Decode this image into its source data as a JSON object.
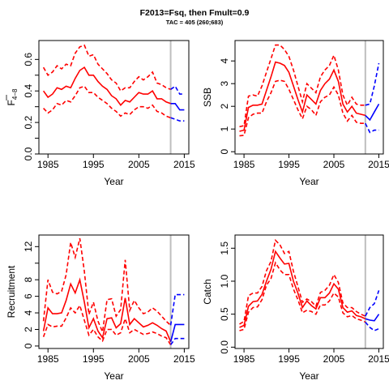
{
  "header": {
    "title": "F2013=Fsq, then Fmult=0.9",
    "subtitle": "TAC = 405 (260;683)"
  },
  "colors": {
    "historic": "#ff0000",
    "projection": "#0000ff",
    "divider": "#bebebe"
  },
  "chart_data": [
    {
      "type": "line",
      "ylabel": "F4-8",
      "xlabel": "Year",
      "xlim": [
        1983,
        2016
      ],
      "ylim": [
        0,
        0.72
      ],
      "xticks": [
        "1985",
        "1995",
        "2005",
        "2015"
      ],
      "yticks": [
        {
          "v": 0.0,
          "label": "0.0"
        },
        {
          "v": 0.1,
          "label": ""
        },
        {
          "v": 0.2,
          "label": "0.2"
        },
        {
          "v": 0.3,
          "label": ""
        },
        {
          "v": 0.4,
          "label": "0.4"
        },
        {
          "v": 0.5,
          "label": ""
        },
        {
          "v": 0.6,
          "label": "0.6"
        }
      ],
      "x": [
        1984,
        1985,
        1986,
        1987,
        1988,
        1989,
        1990,
        1991,
        1992,
        1993,
        1994,
        1995,
        1996,
        1997,
        1998,
        1999,
        2000,
        2001,
        2002,
        2003,
        2004,
        2005,
        2006,
        2007,
        2008,
        2009,
        2010,
        2011,
        2012
      ],
      "series": [
        {
          "style": "solid",
          "values": [
            0.4,
            0.36,
            0.38,
            0.42,
            0.41,
            0.43,
            0.42,
            0.48,
            0.53,
            0.55,
            0.5,
            0.5,
            0.46,
            0.43,
            0.41,
            0.37,
            0.35,
            0.31,
            0.34,
            0.33,
            0.36,
            0.39,
            0.38,
            0.38,
            0.4,
            0.35,
            0.35,
            0.33,
            0.32
          ]
        },
        {
          "style": "dashed",
          "values": [
            0.55,
            0.5,
            0.52,
            0.56,
            0.54,
            0.57,
            0.56,
            0.64,
            0.68,
            0.69,
            0.62,
            0.63,
            0.57,
            0.54,
            0.51,
            0.47,
            0.45,
            0.4,
            0.42,
            0.42,
            0.46,
            0.49,
            0.47,
            0.49,
            0.52,
            0.45,
            0.44,
            0.42,
            0.41
          ]
        },
        {
          "style": "dashed",
          "values": [
            0.29,
            0.26,
            0.28,
            0.32,
            0.31,
            0.34,
            0.33,
            0.37,
            0.42,
            0.43,
            0.39,
            0.39,
            0.36,
            0.34,
            0.32,
            0.29,
            0.27,
            0.24,
            0.26,
            0.25,
            0.28,
            0.3,
            0.3,
            0.29,
            0.31,
            0.27,
            0.26,
            0.24,
            0.23
          ]
        }
      ],
      "projection": {
        "x": [
          2012,
          2013,
          2014,
          2015
        ],
        "series": [
          {
            "style": "solid",
            "values": [
              0.32,
              0.32,
              0.28,
              0.28
            ]
          },
          {
            "style": "dashed",
            "values": [
              0.41,
              0.43,
              0.38,
              0.38
            ]
          },
          {
            "style": "dashed",
            "values": [
              0.23,
              0.22,
              0.21,
              0.21
            ]
          }
        ]
      },
      "divider_year": 2012
    },
    {
      "type": "line",
      "ylabel": "SSB",
      "xlabel": "Year",
      "xlim": [
        1983,
        2016
      ],
      "ylim": [
        -0.1,
        4.9
      ],
      "xticks": [
        "1985",
        "1995",
        "2005",
        "2015"
      ],
      "yticks": [
        {
          "v": 0,
          "label": "0"
        },
        {
          "v": 1,
          "label": "1"
        },
        {
          "v": 2,
          "label": "2"
        },
        {
          "v": 3,
          "label": "3"
        },
        {
          "v": 4,
          "label": "4"
        }
      ],
      "x": [
        1984,
        1985,
        1986,
        1987,
        1988,
        1989,
        1990,
        1991,
        1992,
        1993,
        1994,
        1995,
        1996,
        1997,
        1998,
        1999,
        2000,
        2001,
        2002,
        2003,
        2004,
        2005,
        2006,
        2007,
        2008,
        2009,
        2010,
        2011,
        2012
      ],
      "series": [
        {
          "style": "solid",
          "values": [
            0.9,
            0.95,
            1.95,
            2.05,
            2.05,
            2.1,
            2.7,
            3.3,
            3.95,
            3.9,
            3.8,
            3.5,
            2.9,
            2.3,
            1.75,
            2.5,
            2.3,
            2.1,
            2.7,
            3.0,
            3.2,
            3.6,
            3.1,
            2.1,
            1.75,
            2.0,
            1.7,
            1.65,
            1.6
          ]
        },
        {
          "style": "dashed",
          "values": [
            1.1,
            1.15,
            2.45,
            2.5,
            2.45,
            2.9,
            3.5,
            4.1,
            4.7,
            4.7,
            4.5,
            4.2,
            3.6,
            2.9,
            2.2,
            3.0,
            2.8,
            2.6,
            3.3,
            3.6,
            3.8,
            4.25,
            3.6,
            2.5,
            2.05,
            2.4,
            2.1,
            2.05,
            2.05
          ]
        },
        {
          "style": "dashed",
          "values": [
            0.7,
            0.72,
            1.5,
            1.65,
            1.7,
            1.7,
            2.2,
            2.6,
            3.1,
            3.15,
            3.1,
            2.75,
            2.3,
            1.85,
            1.45,
            2.0,
            1.85,
            1.6,
            2.2,
            2.4,
            2.5,
            2.85,
            2.5,
            1.7,
            1.35,
            1.6,
            1.3,
            1.25,
            1.25
          ]
        }
      ],
      "projection": {
        "x": [
          2012,
          2013,
          2014,
          2015
        ],
        "series": [
          {
            "style": "solid",
            "values": [
              1.6,
              1.4,
              1.75,
              2.1
            ]
          },
          {
            "style": "dashed",
            "values": [
              2.05,
              2.1,
              2.9,
              3.9
            ]
          },
          {
            "style": "dashed",
            "values": [
              1.25,
              0.85,
              0.95,
              0.95
            ]
          }
        ]
      },
      "divider_year": 2012
    },
    {
      "type": "line",
      "ylabel": "Recruitment",
      "xlabel": "Year",
      "xlim": [
        1983,
        2016
      ],
      "ylim": [
        -0.3,
        13.4
      ],
      "xticks": [
        "1985",
        "1995",
        "2005",
        "2015"
      ],
      "yticks": [
        {
          "v": 0,
          "label": "0"
        },
        {
          "v": 2,
          "label": "2"
        },
        {
          "v": 4,
          "label": "4"
        },
        {
          "v": 6,
          "label": "6"
        },
        {
          "v": 8,
          "label": "8"
        },
        {
          "v": 10,
          "label": ""
        },
        {
          "v": 12,
          "label": "12"
        }
      ],
      "x": [
        1984,
        1985,
        1986,
        1987,
        1988,
        1989,
        1990,
        1991,
        1992,
        1993,
        1994,
        1995,
        1996,
        1997,
        1998,
        1999,
        2000,
        2001,
        2002,
        2003,
        2004,
        2005,
        2006,
        2007,
        2008,
        2009,
        2010,
        2011,
        2012
      ],
      "series": [
        {
          "style": "solid",
          "values": [
            1.8,
            4.6,
            3.9,
            3.9,
            4.0,
            5.5,
            7.5,
            6.4,
            8.0,
            5.3,
            2.2,
            3.3,
            1.8,
            1.0,
            3.3,
            3.4,
            2.2,
            2.7,
            5.8,
            2.6,
            3.3,
            2.8,
            2.3,
            2.5,
            2.8,
            2.5,
            2.1,
            1.8,
            0.5
          ]
        },
        {
          "style": "dashed",
          "values": [
            3.0,
            8.0,
            6.5,
            6.3,
            6.6,
            8.6,
            12.5,
            10.7,
            13.0,
            9.0,
            3.8,
            5.3,
            3.0,
            1.7,
            5.6,
            5.7,
            3.6,
            4.4,
            10.4,
            4.3,
            5.5,
            4.6,
            3.9,
            4.1,
            4.6,
            4.2,
            3.6,
            3.0,
            2.5
          ]
        },
        {
          "style": "dashed",
          "values": [
            1.1,
            2.6,
            2.3,
            2.4,
            2.4,
            3.4,
            4.6,
            4.0,
            4.9,
            3.1,
            1.3,
            2.0,
            1.1,
            0.6,
            2.0,
            2.0,
            1.3,
            1.6,
            3.3,
            1.6,
            2.0,
            1.7,
            1.4,
            1.5,
            1.7,
            1.5,
            1.2,
            1.0,
            0.15
          ]
        }
      ],
      "projection": {
        "x": [
          2012,
          2013,
          2014,
          2015
        ],
        "series": [
          {
            "style": "solid",
            "values": [
              0.5,
              2.6,
              2.6,
              2.6
            ]
          },
          {
            "style": "dashed",
            "values": [
              2.5,
              6.2,
              6.2,
              6.2
            ]
          },
          {
            "style": "dashed",
            "values": [
              0.15,
              0.9,
              0.9,
              0.9
            ]
          }
        ]
      },
      "divider_year": 2012
    },
    {
      "type": "line",
      "ylabel": "Catch",
      "xlabel": "Year",
      "xlim": [
        1983,
        2016
      ],
      "ylim": [
        -0.02,
        1.7
      ],
      "xticks": [
        "1985",
        "1995",
        "2005",
        "2015"
      ],
      "yticks": [
        {
          "v": 0.0,
          "label": "0.0"
        },
        {
          "v": 0.5,
          "label": "0.5"
        },
        {
          "v": 1.0,
          "label": "1.0"
        },
        {
          "v": 1.5,
          "label": "1.5"
        }
      ],
      "x": [
        1984,
        1985,
        1986,
        1987,
        1988,
        1989,
        1990,
        1991,
        1992,
        1993,
        1994,
        1995,
        1996,
        1997,
        1998,
        1999,
        2000,
        2001,
        2002,
        2003,
        2004,
        2005,
        2006,
        2007,
        2008,
        2009,
        2010,
        2011,
        2012
      ],
      "series": [
        {
          "style": "solid",
          "values": [
            0.3,
            0.33,
            0.62,
            0.69,
            0.7,
            0.8,
            1.0,
            1.18,
            1.45,
            1.35,
            1.26,
            1.27,
            1.0,
            0.82,
            0.6,
            0.7,
            0.63,
            0.58,
            0.75,
            0.75,
            0.82,
            0.96,
            0.88,
            0.6,
            0.53,
            0.55,
            0.48,
            0.46,
            0.43
          ]
        },
        {
          "style": "dashed",
          "values": [
            0.35,
            0.39,
            0.78,
            0.82,
            0.82,
            0.92,
            1.16,
            1.3,
            1.62,
            1.55,
            1.42,
            1.45,
            1.15,
            0.92,
            0.68,
            0.73,
            0.69,
            0.62,
            0.83,
            0.86,
            0.94,
            1.1,
            0.98,
            0.67,
            0.6,
            0.6,
            0.54,
            0.5,
            0.47
          ]
        },
        {
          "style": "dashed",
          "values": [
            0.25,
            0.27,
            0.53,
            0.6,
            0.61,
            0.72,
            0.94,
            1.04,
            1.28,
            1.17,
            1.1,
            1.1,
            0.88,
            0.72,
            0.52,
            0.56,
            0.54,
            0.5,
            0.64,
            0.64,
            0.7,
            0.82,
            0.76,
            0.52,
            0.46,
            0.48,
            0.43,
            0.41,
            0.38
          ]
        }
      ],
      "projection": {
        "x": [
          2012,
          2013,
          2014,
          2015
        ],
        "series": [
          {
            "style": "solid",
            "values": [
              0.43,
              0.41,
              0.4,
              0.5
            ]
          },
          {
            "style": "dashed",
            "values": [
              0.47,
              0.6,
              0.66,
              0.86
            ]
          },
          {
            "style": "dashed",
            "values": [
              0.38,
              0.3,
              0.25,
              0.28
            ]
          }
        ]
      },
      "divider_year": 2012
    }
  ]
}
